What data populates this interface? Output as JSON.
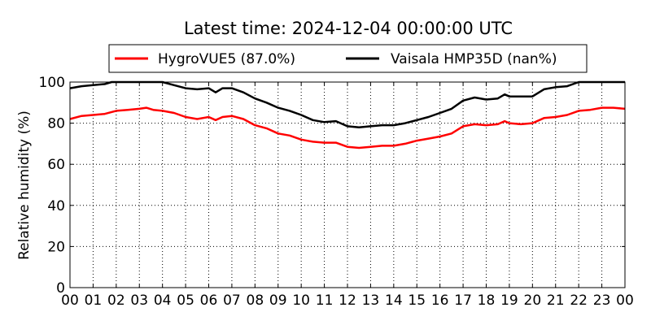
{
  "chart_data": {
    "type": "line",
    "title": "Latest time: 2024-12-04 00:00:00 UTC",
    "xlabel": "",
    "ylabel": "Relative humidity (%)",
    "xlim": [
      0,
      24
    ],
    "ylim": [
      0,
      100
    ],
    "grid": true,
    "legend_position": "top-center",
    "x_ticks": [
      0,
      1,
      2,
      3,
      4,
      5,
      6,
      7,
      8,
      9,
      10,
      11,
      12,
      13,
      14,
      15,
      16,
      17,
      18,
      19,
      20,
      21,
      22,
      23,
      24
    ],
    "x_tick_labels": [
      "00",
      "01",
      "02",
      "03",
      "04",
      "05",
      "06",
      "07",
      "08",
      "09",
      "10",
      "11",
      "12",
      "13",
      "14",
      "15",
      "16",
      "17",
      "18",
      "19",
      "20",
      "21",
      "22",
      "23",
      "00"
    ],
    "y_ticks": [
      0,
      20,
      40,
      60,
      80,
      100
    ],
    "y_tick_labels": [
      "0",
      "20",
      "40",
      "60",
      "80",
      "100"
    ],
    "series": [
      {
        "name": "HygroVUE5 (87.0%)",
        "color": "#ff0000",
        "x": [
          0,
          0.5,
          1,
          1.5,
          2,
          2.5,
          3,
          3.3,
          3.6,
          4,
          4.5,
          5,
          5.5,
          6,
          6.3,
          6.6,
          7,
          7.5,
          8,
          8.5,
          9,
          9.5,
          10,
          10.5,
          11,
          11.5,
          12,
          12.5,
          13,
          13.5,
          14,
          14.5,
          15,
          15.5,
          16,
          16.5,
          17,
          17.5,
          18,
          18.5,
          18.8,
          19,
          19.5,
          20,
          20.5,
          21,
          21.5,
          22,
          22.5,
          23,
          23.5,
          24
        ],
        "values": [
          82,
          83.5,
          84,
          84.5,
          86,
          86.5,
          87,
          87.5,
          86.5,
          86,
          85,
          83,
          82,
          83,
          81.5,
          83,
          83.5,
          82,
          79,
          77.5,
          75,
          74,
          72,
          71,
          70.5,
          70.5,
          68.5,
          68,
          68.5,
          69,
          69,
          70,
          71.5,
          72.5,
          73.5,
          75,
          78.5,
          79.5,
          79,
          79.5,
          81,
          80,
          79.5,
          80,
          82.5,
          83,
          84,
          86,
          86.5,
          87.5,
          87.5,
          87
        ]
      },
      {
        "name": "Vaisala HMP35D (nan%)",
        "color": "#000000",
        "x": [
          0,
          0.5,
          1,
          1.5,
          1.8,
          2,
          4,
          4.5,
          5,
          5.5,
          6,
          6.3,
          6.6,
          7,
          7.5,
          8,
          8.5,
          9,
          9.5,
          10,
          10.5,
          11,
          11.5,
          12,
          12.5,
          13,
          13.5,
          14,
          14.5,
          15,
          15.5,
          16,
          16.5,
          17,
          17.5,
          18,
          18.5,
          18.8,
          19,
          19.5,
          20,
          20.5,
          21,
          21.5,
          22,
          24
        ],
        "values": [
          97,
          98,
          98.5,
          99,
          100,
          100,
          100,
          98.5,
          97,
          96.5,
          97,
          95,
          97,
          97,
          95,
          92,
          90,
          87.5,
          86,
          84,
          81.5,
          80.5,
          81,
          78.5,
          78,
          78.5,
          79,
          79,
          80,
          81.5,
          83,
          85,
          87,
          91,
          92.5,
          91.5,
          92,
          94,
          93,
          93,
          93,
          96.5,
          97.5,
          98,
          100,
          100
        ]
      }
    ]
  }
}
